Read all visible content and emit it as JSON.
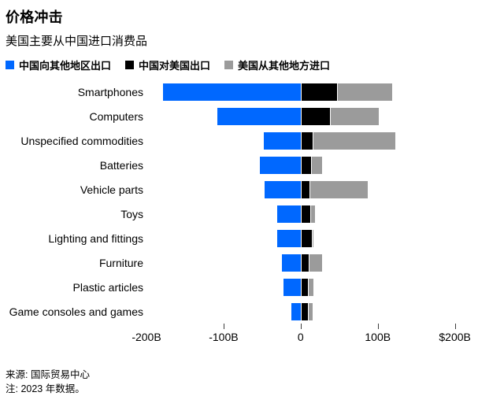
{
  "title": "价格冲击",
  "subtitle": "美国主要从中国进口消费品",
  "legend": [
    {
      "label": "中国向其他地区出口",
      "color": "#0068ff"
    },
    {
      "label": "中国对美国出口",
      "color": "#000000"
    },
    {
      "label": "美国从其他地方进口",
      "color": "#9b9b9b"
    }
  ],
  "footer": {
    "source": "来源: 国际贸易中心",
    "note": "注: 2023 年数据。"
  },
  "chart_data": {
    "type": "bar",
    "orientation": "horizontal",
    "diverging": true,
    "unit": "USD billions",
    "categories": [
      "Smartphones",
      "Computers",
      "Unspecified commodities",
      "Batteries",
      "Vehicle parts",
      "Toys",
      "Lighting and fittings",
      "Furniture",
      "Plastic articles",
      "Game consoles and games"
    ],
    "series": [
      {
        "name": "中国向其他地区出口",
        "color": "#0068ff",
        "direction": "left",
        "values": [
          179,
          108,
          48,
          53,
          47,
          30,
          30,
          24,
          22,
          12
        ]
      },
      {
        "name": "中国对美国出口",
        "color": "#000000",
        "direction": "right",
        "values": [
          46,
          37,
          14,
          12,
          10,
          11,
          13,
          9,
          8,
          8
        ]
      },
      {
        "name": "美国从其他地方进口",
        "color": "#9b9b9b",
        "direction": "right-stacked-after-black",
        "values": [
          71,
          62,
          107,
          14,
          75,
          6,
          1,
          17,
          6,
          5
        ]
      }
    ],
    "axis": {
      "min": -200,
      "max": 230,
      "ticks": [
        {
          "label": "-200B",
          "value": -200,
          "tick": false
        },
        {
          "label": "-100B",
          "value": -100,
          "tick": true
        },
        {
          "label": "0",
          "value": 0,
          "tick": true
        },
        {
          "label": "100B",
          "value": 100,
          "tick": true
        },
        {
          "label": "$200B",
          "value": 200,
          "tick": true
        }
      ],
      "grid": false,
      "legend_position": "top"
    }
  }
}
